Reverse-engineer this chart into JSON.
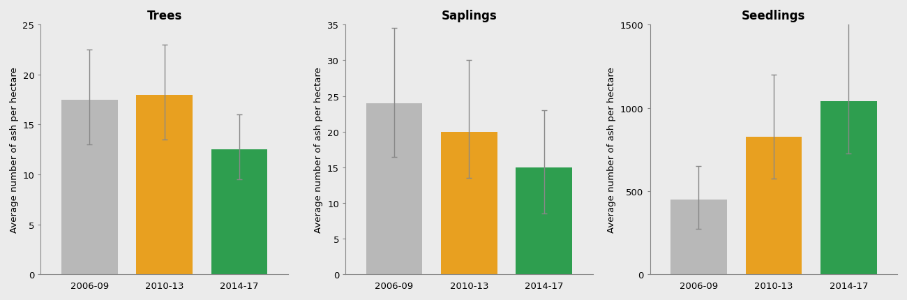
{
  "panels": [
    {
      "title": "Trees",
      "ylabel": "Average number of ash per hectare",
      "categories": [
        "2006-09",
        "2010-13",
        "2014-17"
      ],
      "values": [
        17.5,
        18.0,
        12.5
      ],
      "err_low": [
        4.5,
        4.5,
        3.0
      ],
      "err_high": [
        5.0,
        5.0,
        3.5
      ],
      "colors": [
        "#b8b8b8",
        "#e8a020",
        "#2e9e4f"
      ],
      "ylim": [
        0,
        25
      ],
      "yticks": [
        0,
        5,
        10,
        15,
        20,
        25
      ]
    },
    {
      "title": "Saplings",
      "ylabel": "Average number of ash per hectare",
      "categories": [
        "2006-09",
        "2010-13",
        "2014-17"
      ],
      "values": [
        24.0,
        20.0,
        15.0
      ],
      "err_low": [
        7.5,
        6.5,
        6.5
      ],
      "err_high": [
        10.5,
        10.0,
        8.0
      ],
      "colors": [
        "#b8b8b8",
        "#e8a020",
        "#2e9e4f"
      ],
      "ylim": [
        0,
        35
      ],
      "yticks": [
        0,
        5,
        10,
        15,
        20,
        25,
        30,
        35
      ]
    },
    {
      "title": "Seedlings",
      "ylabel": "Average number of ash per hectare",
      "categories": [
        "2006-09",
        "2010-13",
        "2014-17"
      ],
      "values": [
        450,
        825,
        1040
      ],
      "err_low": [
        175,
        250,
        315
      ],
      "err_high": [
        200,
        375,
        610
      ],
      "colors": [
        "#b8b8b8",
        "#e8a020",
        "#2e9e4f"
      ],
      "ylim": [
        0,
        1500
      ],
      "yticks": [
        0,
        500,
        1000,
        1500
      ]
    }
  ],
  "fig_background": "#ebebeb",
  "panel_background": "#ebebeb",
  "bar_width": 0.75,
  "title_fontsize": 12,
  "label_fontsize": 9.5,
  "tick_fontsize": 9.5,
  "capsize": 3,
  "error_color": "#888888",
  "error_linewidth": 1.0
}
